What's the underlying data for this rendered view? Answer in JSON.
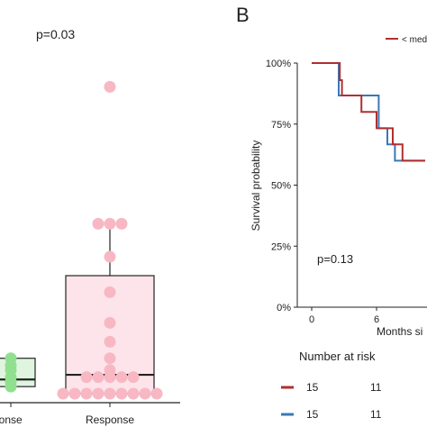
{
  "chart_data": [
    {
      "type": "box",
      "panel_label": "",
      "annotation": "p=0.03",
      "categories": [
        "Non-response",
        "Response"
      ],
      "visible_category_labels": [
        "ponse",
        "Response"
      ],
      "series": [
        {
          "group": "Non-response",
          "color": "#90e090",
          "points": [
            0.3,
            0.5,
            0.7,
            1.0,
            1.2,
            1.5
          ],
          "box": {
            "q1": 0.3,
            "median": 0.6,
            "q3": 1.5,
            "whisker_low": 0.0,
            "whisker_high": 1.5
          }
        },
        {
          "group": "Response",
          "color": "#f7b8c4",
          "points": [
            0,
            0,
            0,
            0,
            0,
            0,
            0,
            0,
            0,
            0.7,
            0.7,
            0.7,
            0.7,
            0.7,
            1.0,
            1.5,
            2.2,
            3.0,
            4.3,
            5.8,
            7.2,
            7.2,
            7.2,
            13.0
          ],
          "box": {
            "q1": 0.0,
            "median": 0.8,
            "q3": 5.0,
            "whisker_low": 0.0,
            "whisker_high": 7.2
          }
        }
      ],
      "ylim": [
        -0.2,
        14
      ]
    },
    {
      "type": "line",
      "subtype": "kaplan-meier",
      "panel_label": "B",
      "annotation": "p=0.13",
      "ylabel": "Survival probability",
      "xlabel": "Months si",
      "legend_text": "< med",
      "x_ticks": [
        0,
        6
      ],
      "y_ticks": [
        "0%",
        "25%",
        "50%",
        "75%",
        "100%"
      ],
      "y_tick_values": [
        0,
        0.25,
        0.5,
        0.75,
        1.0
      ],
      "xlim": [
        -0.5,
        10.5
      ],
      "ylim": [
        0,
        1
      ],
      "series": [
        {
          "color": "#b03030",
          "steps": [
            [
              0,
              1.0
            ],
            [
              2.6,
              1.0
            ],
            [
              2.6,
              0.93
            ],
            [
              2.8,
              0.93
            ],
            [
              2.8,
              0.867
            ],
            [
              4.6,
              0.867
            ],
            [
              4.6,
              0.8
            ],
            [
              6.0,
              0.8
            ],
            [
              6.0,
              0.733
            ],
            [
              7.5,
              0.733
            ],
            [
              7.5,
              0.667
            ],
            [
              8.4,
              0.667
            ],
            [
              8.4,
              0.6
            ],
            [
              10.5,
              0.6
            ]
          ]
        },
        {
          "color": "#3a78b8",
          "steps": [
            [
              0,
              1.0
            ],
            [
              2.5,
              1.0
            ],
            [
              2.5,
              0.867
            ],
            [
              6.2,
              0.867
            ],
            [
              6.2,
              0.733
            ],
            [
              7.0,
              0.733
            ],
            [
              7.0,
              0.667
            ],
            [
              7.7,
              0.667
            ],
            [
              7.7,
              0.6
            ],
            [
              10.5,
              0.6
            ]
          ]
        }
      ],
      "risk_table": {
        "title": "Number at risk",
        "rows": [
          {
            "color": "#b03030",
            "values": [
              "15",
              "11"
            ]
          },
          {
            "color": "#3a78b8",
            "values": [
              "15",
              "11"
            ]
          }
        ]
      }
    }
  ]
}
